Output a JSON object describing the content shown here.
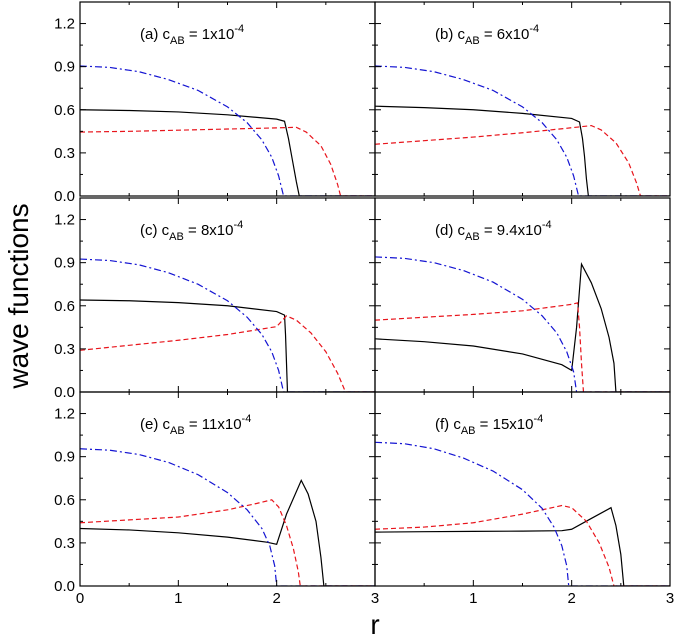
{
  "figure": {
    "ylabel": "wave functions",
    "xlabel": "r"
  },
  "chart_data": [
    {
      "type": "line",
      "panel": "a",
      "title_prefix": "(a) c",
      "title_sub": "AB",
      "title_mid": " = 1x10",
      "title_sup": "-4",
      "xlim": [
        0,
        3
      ],
      "ylim": [
        0,
        1.35
      ],
      "xticks": [
        "0",
        "1",
        "2",
        "3"
      ],
      "yticks": [
        "0.0",
        "0.3",
        "0.6",
        "0.9",
        "1.2"
      ],
      "series": [
        {
          "style": "solid",
          "color": "#000000",
          "points": [
            [
              0,
              0.6
            ],
            [
              0.5,
              0.595
            ],
            [
              1,
              0.585
            ],
            [
              1.5,
              0.565
            ],
            [
              2.0,
              0.535
            ],
            [
              2.08,
              0.52
            ],
            [
              2.12,
              0.4
            ],
            [
              2.16,
              0.25
            ],
            [
              2.2,
              0.1
            ],
            [
              2.23,
              0.0
            ],
            [
              3.0,
              0.0
            ]
          ]
        },
        {
          "style": "dashed",
          "color": "#e8141b",
          "points": [
            [
              0,
              0.445
            ],
            [
              0.5,
              0.45
            ],
            [
              1,
              0.458
            ],
            [
              1.5,
              0.466
            ],
            [
              2.0,
              0.474
            ],
            [
              2.2,
              0.478
            ],
            [
              2.3,
              0.445
            ],
            [
              2.45,
              0.35
            ],
            [
              2.55,
              0.22
            ],
            [
              2.62,
              0.08
            ],
            [
              2.65,
              0.0
            ],
            [
              3.0,
              0.0
            ]
          ]
        },
        {
          "style": "dashdot",
          "color": "#1414d2",
          "points": [
            [
              0,
              0.905
            ],
            [
              0.3,
              0.895
            ],
            [
              0.6,
              0.865
            ],
            [
              0.9,
              0.81
            ],
            [
              1.2,
              0.735
            ],
            [
              1.5,
              0.62
            ],
            [
              1.7,
              0.51
            ],
            [
              1.85,
              0.39
            ],
            [
              1.95,
              0.27
            ],
            [
              2.02,
              0.14
            ],
            [
              2.07,
              0.0
            ],
            [
              3.0,
              0.0
            ]
          ]
        }
      ]
    },
    {
      "type": "line",
      "panel": "b",
      "title_prefix": "(b) c",
      "title_sub": "AB",
      "title_mid": " = 6x10",
      "title_sup": "-4",
      "xlim": [
        0,
        3
      ],
      "ylim": [
        0,
        1.35
      ],
      "xticks": [
        "0",
        "1",
        "2",
        "3"
      ],
      "yticks": [
        "0.0",
        "0.3",
        "0.6",
        "0.9",
        "1.2"
      ],
      "series": [
        {
          "style": "solid",
          "color": "#000000",
          "points": [
            [
              0,
              0.625
            ],
            [
              0.5,
              0.615
            ],
            [
              1,
              0.6
            ],
            [
              1.5,
              0.575
            ],
            [
              2.0,
              0.54
            ],
            [
              2.08,
              0.515
            ],
            [
              2.11,
              0.4
            ],
            [
              2.13,
              0.28
            ],
            [
              2.15,
              0.12
            ],
            [
              2.17,
              0.0
            ],
            [
              3.0,
              0.0
            ]
          ]
        },
        {
          "style": "dashed",
          "color": "#e8141b",
          "points": [
            [
              0,
              0.36
            ],
            [
              0.5,
              0.385
            ],
            [
              1,
              0.41
            ],
            [
              1.5,
              0.44
            ],
            [
              2.0,
              0.475
            ],
            [
              2.2,
              0.49
            ],
            [
              2.3,
              0.46
            ],
            [
              2.45,
              0.37
            ],
            [
              2.58,
              0.23
            ],
            [
              2.66,
              0.09
            ],
            [
              2.7,
              0.0
            ],
            [
              3.0,
              0.0
            ]
          ]
        },
        {
          "style": "dashdot",
          "color": "#1414d2",
          "points": [
            [
              0,
              0.905
            ],
            [
              0.3,
              0.895
            ],
            [
              0.6,
              0.865
            ],
            [
              0.9,
              0.81
            ],
            [
              1.2,
              0.735
            ],
            [
              1.5,
              0.62
            ],
            [
              1.7,
              0.51
            ],
            [
              1.85,
              0.39
            ],
            [
              1.95,
              0.27
            ],
            [
              2.02,
              0.14
            ],
            [
              2.07,
              0.0
            ],
            [
              3.0,
              0.0
            ]
          ]
        }
      ]
    },
    {
      "type": "line",
      "panel": "c",
      "title_prefix": "(c) c",
      "title_sub": "AB",
      "title_mid": " = 8x10",
      "title_sup": "-4",
      "xlim": [
        0,
        3
      ],
      "ylim": [
        0,
        1.35
      ],
      "xticks": [
        "0",
        "1",
        "2",
        "3"
      ],
      "yticks": [
        "0.0",
        "0.3",
        "0.6",
        "0.9",
        "1.2"
      ],
      "series": [
        {
          "style": "solid",
          "color": "#000000",
          "points": [
            [
              0,
              0.64
            ],
            [
              0.5,
              0.635
            ],
            [
              1,
              0.622
            ],
            [
              1.5,
              0.6
            ],
            [
              2.0,
              0.56
            ],
            [
              2.08,
              0.535
            ],
            [
              2.09,
              0.4
            ],
            [
              2.1,
              0.2
            ],
            [
              2.11,
              0.0
            ],
            [
              3.0,
              0.0
            ]
          ]
        },
        {
          "style": "dashed",
          "color": "#e8141b",
          "points": [
            [
              0,
              0.29
            ],
            [
              0.5,
              0.325
            ],
            [
              1,
              0.36
            ],
            [
              1.5,
              0.4
            ],
            [
              2.0,
              0.455
            ],
            [
              2.1,
              0.53
            ],
            [
              2.2,
              0.5
            ],
            [
              2.35,
              0.41
            ],
            [
              2.5,
              0.28
            ],
            [
              2.62,
              0.13
            ],
            [
              2.7,
              0.0
            ],
            [
              3.0,
              0.0
            ]
          ]
        },
        {
          "style": "dashdot",
          "color": "#1414d2",
          "points": [
            [
              0,
              0.925
            ],
            [
              0.3,
              0.915
            ],
            [
              0.6,
              0.885
            ],
            [
              0.9,
              0.83
            ],
            [
              1.2,
              0.75
            ],
            [
              1.5,
              0.635
            ],
            [
              1.7,
              0.52
            ],
            [
              1.85,
              0.4
            ],
            [
              1.95,
              0.28
            ],
            [
              2.02,
              0.15
            ],
            [
              2.07,
              0.0
            ],
            [
              3.0,
              0.0
            ]
          ]
        }
      ]
    },
    {
      "type": "line",
      "panel": "d",
      "title_prefix": "(d) c",
      "title_sub": "AB",
      "title_mid": " = 9.4x10",
      "title_sup": "-4",
      "xlim": [
        0,
        3
      ],
      "ylim": [
        0,
        1.35
      ],
      "xticks": [
        "0",
        "1",
        "2",
        "3"
      ],
      "yticks": [
        "0.0",
        "0.3",
        "0.6",
        "0.9",
        "1.2"
      ],
      "series": [
        {
          "style": "solid",
          "color": "#000000",
          "points": [
            [
              0,
              0.37
            ],
            [
              0.5,
              0.35
            ],
            [
              1,
              0.32
            ],
            [
              1.5,
              0.265
            ],
            [
              1.9,
              0.19
            ],
            [
              2.0,
              0.15
            ],
            [
              2.05,
              0.45
            ],
            [
              2.1,
              0.89
            ],
            [
              2.2,
              0.76
            ],
            [
              2.3,
              0.58
            ],
            [
              2.38,
              0.38
            ],
            [
              2.43,
              0.2
            ],
            [
              2.45,
              0.0
            ],
            [
              3.0,
              0.0
            ]
          ]
        },
        {
          "style": "dashed",
          "color": "#e8141b",
          "points": [
            [
              0,
              0.5
            ],
            [
              0.5,
              0.52
            ],
            [
              1,
              0.54
            ],
            [
              1.5,
              0.565
            ],
            [
              2.0,
              0.61
            ],
            [
              2.06,
              0.62
            ],
            [
              2.08,
              0.45
            ],
            [
              2.1,
              0.2
            ],
            [
              2.12,
              0.0
            ],
            [
              3.0,
              0.0
            ]
          ]
        },
        {
          "style": "dashdot",
          "color": "#1414d2",
          "points": [
            [
              0,
              0.94
            ],
            [
              0.3,
              0.93
            ],
            [
              0.6,
              0.9
            ],
            [
              0.9,
              0.845
            ],
            [
              1.2,
              0.765
            ],
            [
              1.5,
              0.645
            ],
            [
              1.7,
              0.53
            ],
            [
              1.85,
              0.41
            ],
            [
              1.95,
              0.28
            ],
            [
              2.02,
              0.14
            ],
            [
              2.05,
              0.0
            ],
            [
              3.0,
              0.0
            ]
          ]
        }
      ]
    },
    {
      "type": "line",
      "panel": "e",
      "title_prefix": "(e) c",
      "title_sub": "AB",
      "title_mid": " = 11x10",
      "title_sup": "-4",
      "xlim": [
        0,
        3
      ],
      "ylim": [
        0,
        1.35
      ],
      "xticks": [
        "0",
        "1",
        "2",
        "3"
      ],
      "yticks": [
        "0.0",
        "0.3",
        "0.6",
        "0.9",
        "1.2"
      ],
      "series": [
        {
          "style": "solid",
          "color": "#000000",
          "points": [
            [
              0,
              0.4
            ],
            [
              0.5,
              0.39
            ],
            [
              1,
              0.37
            ],
            [
              1.5,
              0.34
            ],
            [
              1.9,
              0.305
            ],
            [
              2.0,
              0.29
            ],
            [
              2.1,
              0.5
            ],
            [
              2.25,
              0.735
            ],
            [
              2.32,
              0.64
            ],
            [
              2.4,
              0.45
            ],
            [
              2.45,
              0.2
            ],
            [
              2.48,
              0.0
            ],
            [
              3.0,
              0.0
            ]
          ]
        },
        {
          "style": "dashed",
          "color": "#e8141b",
          "points": [
            [
              0,
              0.44
            ],
            [
              0.5,
              0.46
            ],
            [
              1,
              0.48
            ],
            [
              1.5,
              0.53
            ],
            [
              1.8,
              0.575
            ],
            [
              1.95,
              0.6
            ],
            [
              2.02,
              0.55
            ],
            [
              2.1,
              0.42
            ],
            [
              2.17,
              0.26
            ],
            [
              2.22,
              0.1
            ],
            [
              2.24,
              0.0
            ],
            [
              3.0,
              0.0
            ]
          ]
        },
        {
          "style": "dashdot",
          "color": "#1414d2",
          "points": [
            [
              0,
              0.955
            ],
            [
              0.3,
              0.945
            ],
            [
              0.6,
              0.915
            ],
            [
              0.9,
              0.86
            ],
            [
              1.2,
              0.775
            ],
            [
              1.5,
              0.65
            ],
            [
              1.7,
              0.53
            ],
            [
              1.85,
              0.4
            ],
            [
              1.93,
              0.28
            ],
            [
              1.98,
              0.14
            ],
            [
              2.0,
              0.0
            ],
            [
              3.0,
              0.0
            ]
          ]
        }
      ]
    },
    {
      "type": "line",
      "panel": "f",
      "title_prefix": "(f) c",
      "title_sub": "AB",
      "title_mid": " = 15x10",
      "title_sup": "-4",
      "xlim": [
        0,
        3
      ],
      "ylim": [
        0,
        1.35
      ],
      "xticks": [
        "0",
        "1",
        "2",
        "3"
      ],
      "yticks": [
        "0.0",
        "0.3",
        "0.6",
        "0.9",
        "1.2"
      ],
      "series": [
        {
          "style": "solid",
          "color": "#000000",
          "points": [
            [
              0,
              0.375
            ],
            [
              0.5,
              0.378
            ],
            [
              1,
              0.38
            ],
            [
              1.5,
              0.382
            ],
            [
              1.9,
              0.385
            ],
            [
              2.0,
              0.395
            ],
            [
              2.2,
              0.47
            ],
            [
              2.4,
              0.545
            ],
            [
              2.45,
              0.42
            ],
            [
              2.5,
              0.22
            ],
            [
              2.53,
              0.0
            ],
            [
              3.0,
              0.0
            ]
          ]
        },
        {
          "style": "dashed",
          "color": "#e8141b",
          "points": [
            [
              0,
              0.395
            ],
            [
              0.5,
              0.41
            ],
            [
              1,
              0.44
            ],
            [
              1.5,
              0.5
            ],
            [
              1.8,
              0.545
            ],
            [
              1.9,
              0.56
            ],
            [
              2.0,
              0.545
            ],
            [
              2.15,
              0.45
            ],
            [
              2.28,
              0.3
            ],
            [
              2.38,
              0.13
            ],
            [
              2.43,
              0.0
            ],
            [
              3.0,
              0.0
            ]
          ]
        },
        {
          "style": "dashdot",
          "color": "#1414d2",
          "points": [
            [
              0,
              1.0
            ],
            [
              0.3,
              0.99
            ],
            [
              0.6,
              0.955
            ],
            [
              0.9,
              0.89
            ],
            [
              1.2,
              0.8
            ],
            [
              1.5,
              0.67
            ],
            [
              1.7,
              0.54
            ],
            [
              1.82,
              0.41
            ],
            [
              1.9,
              0.28
            ],
            [
              1.95,
              0.14
            ],
            [
              1.97,
              0.0
            ],
            [
              3.0,
              0.0
            ]
          ]
        }
      ]
    }
  ]
}
